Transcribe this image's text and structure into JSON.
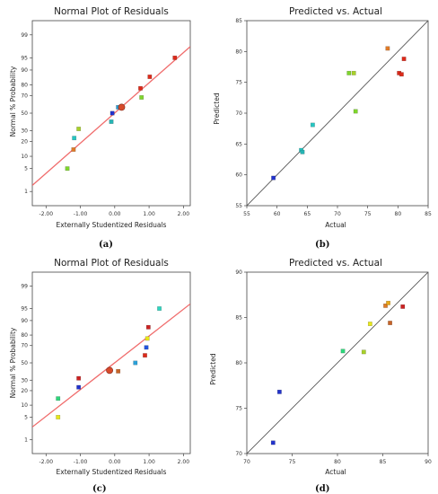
{
  "colors": {
    "fit_red": "#f06c6c",
    "fit_black": "#555555",
    "axis": "#444444"
  },
  "chart_data": [
    {
      "type": "scatter",
      "panel_label": "(a)",
      "title": "Normal Plot of Residuals",
      "xlabel": "Externally Studentized Residuals",
      "ylabel": "Normal % Probability",
      "xlim": [
        -2.4,
        2.2
      ],
      "x_ticks": [
        -2,
        -1,
        0,
        1,
        2
      ],
      "x_tick_labels": [
        "-2.00",
        "-1.00",
        "0.00",
        "1.00",
        "2.00"
      ],
      "y_ticks": [
        1,
        5,
        10,
        20,
        30,
        50,
        70,
        80,
        90,
        95,
        99
      ],
      "y_scale": "normal-probability",
      "fit_line": [
        [
          -2.4,
          1.6
        ],
        [
          2.2,
          97.6
        ]
      ],
      "fit_color": "red",
      "points": [
        {
          "x": -1.38,
          "y": 5,
          "color": "#7fd62d"
        },
        {
          "x": -1.2,
          "y": 14,
          "color": "#e07b28"
        },
        {
          "x": -1.18,
          "y": 23,
          "color": "#26c6c2"
        },
        {
          "x": -1.05,
          "y": 32,
          "color": "#a8d12a"
        },
        {
          "x": -0.1,
          "y": 40,
          "color": "#26b5b5"
        },
        {
          "x": -0.07,
          "y": 50,
          "color": "#2233cc"
        },
        {
          "x": 0.1,
          "y": 57,
          "color": "#2ba0d8"
        },
        {
          "x": 0.2,
          "y": 57,
          "color": "#d84a2a",
          "large": true
        },
        {
          "x": 0.78,
          "y": 68,
          "color": "#7fd62d"
        },
        {
          "x": 0.75,
          "y": 77,
          "color": "#dd2a1a"
        },
        {
          "x": 1.02,
          "y": 86,
          "color": "#dd2a1a"
        },
        {
          "x": 1.75,
          "y": 95,
          "color": "#dd2a1a"
        }
      ]
    },
    {
      "type": "scatter",
      "panel_label": "(b)",
      "title": "Predicted vs. Actual",
      "xlabel": "Actual",
      "ylabel": "Predicted",
      "xlim": [
        55,
        85
      ],
      "ylim": [
        55,
        85
      ],
      "x_ticks": [
        55,
        60,
        65,
        70,
        75,
        80,
        85
      ],
      "y_ticks": [
        55,
        60,
        65,
        70,
        75,
        80,
        85
      ],
      "diagonal": [
        [
          55,
          55
        ],
        [
          88,
          88
        ]
      ],
      "points": [
        {
          "x": 59.4,
          "y": 59.5,
          "color": "#2233cc"
        },
        {
          "x": 64.0,
          "y": 64.0,
          "color": "#26c6c2"
        },
        {
          "x": 64.2,
          "y": 63.7,
          "color": "#26b5b5"
        },
        {
          "x": 65.9,
          "y": 68.1,
          "color": "#26c6c2"
        },
        {
          "x": 71.9,
          "y": 76.5,
          "color": "#7fd62d"
        },
        {
          "x": 72.7,
          "y": 76.5,
          "color": "#a8d12a"
        },
        {
          "x": 73.0,
          "y": 70.3,
          "color": "#7fd62d"
        },
        {
          "x": 78.3,
          "y": 80.5,
          "color": "#e07b28"
        },
        {
          "x": 80.2,
          "y": 76.5,
          "color": "#dd2a1a"
        },
        {
          "x": 80.6,
          "y": 76.3,
          "color": "#dd2a1a"
        },
        {
          "x": 81.0,
          "y": 78.8,
          "color": "#dd2a1a"
        }
      ]
    },
    {
      "type": "scatter",
      "panel_label": "(c)",
      "title": "Normal Plot of Residuals",
      "xlabel": "Externally Studentized Residuals",
      "ylabel": "Normal % Probability",
      "xlim": [
        -2.4,
        2.2
      ],
      "x_ticks": [
        -2,
        -1,
        0,
        1,
        2
      ],
      "x_tick_labels": [
        "-2.00",
        "-1.00",
        "0.00",
        "1.00",
        "2.00"
      ],
      "y_ticks": [
        1,
        5,
        10,
        20,
        30,
        50,
        70,
        80,
        90,
        95,
        99
      ],
      "y_scale": "normal-probability",
      "fit_line": [
        [
          -2.4,
          2.6
        ],
        [
          2.2,
          96.3
        ]
      ],
      "fit_color": "red",
      "points": [
        {
          "x": -1.65,
          "y": 5,
          "color": "#e8e81a"
        },
        {
          "x": -1.65,
          "y": 14,
          "color": "#2ed67b"
        },
        {
          "x": -1.05,
          "y": 23,
          "color": "#2233cc"
        },
        {
          "x": -1.05,
          "y": 32,
          "color": "#cc2222"
        },
        {
          "x": -0.15,
          "y": 41,
          "color": "#d84a2a",
          "large": true
        },
        {
          "x": 0.1,
          "y": 40,
          "color": "#c86428"
        },
        {
          "x": 0.6,
          "y": 50,
          "color": "#2ba0d8"
        },
        {
          "x": 0.88,
          "y": 59,
          "color": "#dd2a1a"
        },
        {
          "x": 0.92,
          "y": 68,
          "color": "#2255dd"
        },
        {
          "x": 0.95,
          "y": 77,
          "color": "#e8e81a"
        },
        {
          "x": 0.98,
          "y": 86,
          "color": "#cc2222"
        },
        {
          "x": 1.3,
          "y": 95,
          "color": "#2ed6c0"
        }
      ]
    },
    {
      "type": "scatter",
      "panel_label": "(d)",
      "title": "Predicted vs. Actual",
      "xlabel": "Actual",
      "ylabel": "Predicted",
      "xlim": [
        70,
        90
      ],
      "ylim": [
        70,
        90
      ],
      "x_ticks": [
        70,
        75,
        80,
        85,
        90
      ],
      "y_ticks": [
        70,
        75,
        80,
        85,
        90
      ],
      "diagonal": [
        [
          70,
          70
        ],
        [
          90,
          90
        ]
      ],
      "points": [
        {
          "x": 72.9,
          "y": 71.2,
          "color": "#2233cc"
        },
        {
          "x": 73.6,
          "y": 76.8,
          "color": "#2233cc"
        },
        {
          "x": 80.6,
          "y": 81.3,
          "color": "#2ed67b"
        },
        {
          "x": 82.9,
          "y": 81.2,
          "color": "#a8d12a"
        },
        {
          "x": 83.6,
          "y": 84.3,
          "color": "#e8e81a"
        },
        {
          "x": 85.3,
          "y": 86.3,
          "color": "#e07b28"
        },
        {
          "x": 85.6,
          "y": 86.6,
          "color": "#e8a81a"
        },
        {
          "x": 85.8,
          "y": 84.4,
          "color": "#c86428"
        },
        {
          "x": 87.2,
          "y": 86.2,
          "color": "#cc2222"
        }
      ]
    }
  ]
}
